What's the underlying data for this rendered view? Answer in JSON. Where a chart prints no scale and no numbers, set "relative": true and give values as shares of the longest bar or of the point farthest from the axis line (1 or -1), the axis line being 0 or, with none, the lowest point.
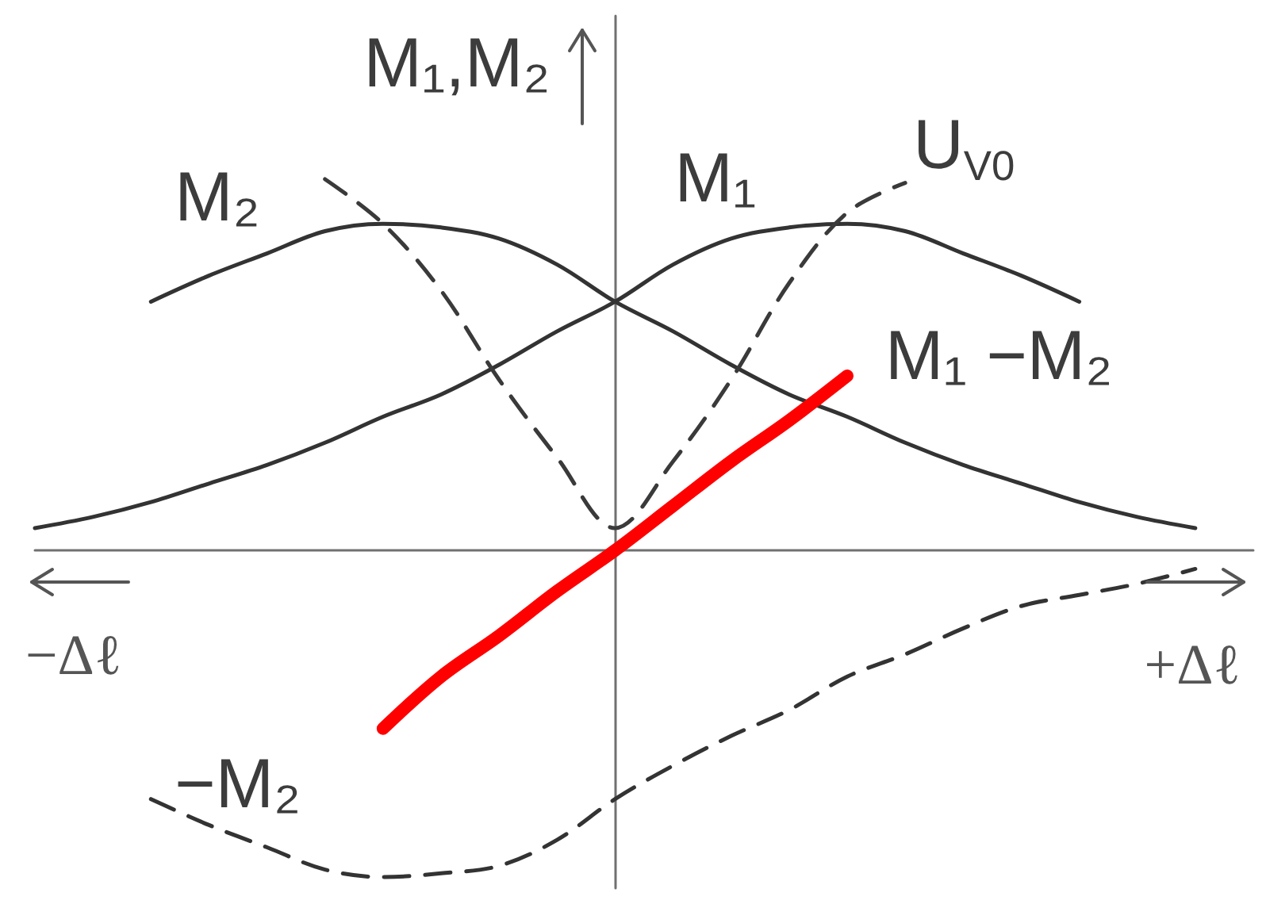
{
  "chart_data": {
    "type": "line",
    "relative": true,
    "categories": [
      null,
      null,
      null,
      null,
      null,
      null,
      null,
      null,
      null,
      null,
      null,
      null,
      null,
      null,
      null,
      null,
      null,
      null,
      null,
      null,
      null,
      null
    ],
    "xlabel": "+Δℓ",
    "ylabel": "M₁,M₂",
    "annotations": [
      "−Δℓ"
    ],
    "grid": false,
    "marker": "none",
    "line_style": "solid",
    "series": [
      {
        "name": "M₁",
        "color": "#333333",
        "values": [
          0.06,
          0.09,
          0.13,
          0.18,
          0.23,
          0.29,
          0.36,
          0.42,
          0.5,
          0.59,
          0.67,
          0.77,
          0.84,
          0.87,
          0.88,
          0.86,
          0.8,
          0.74,
          0.67,
          null,
          null,
          null
        ]
      },
      {
        "name": "M₂",
        "color": "#333333",
        "values": [
          null,
          null,
          0.67,
          0.74,
          0.8,
          0.86,
          0.88,
          0.87,
          0.84,
          0.77,
          0.67,
          0.59,
          0.5,
          0.42,
          0.36,
          0.29,
          0.23,
          0.18,
          0.13,
          0.09,
          0.06,
          null
        ]
      },
      {
        "name": "U$_{V0}$",
        "color": "#3a3a3a",
        "line_style": "dashed",
        "values": [
          null,
          null,
          null,
          null,
          null,
          1.0,
          0.88,
          0.7,
          0.46,
          0.25,
          0.06,
          0.24,
          0.46,
          0.72,
          0.91,
          0.99,
          null,
          null,
          null,
          null,
          null,
          null
        ]
      },
      {
        "name": "−M₂",
        "color": "#333333",
        "line_style": "dashed",
        "values": [
          null,
          null,
          -0.67,
          -0.74,
          -0.8,
          -0.86,
          -0.88,
          -0.87,
          -0.85,
          -0.78,
          -0.67,
          -0.58,
          -0.5,
          -0.43,
          -0.34,
          -0.28,
          -0.21,
          -0.15,
          -0.12,
          -0.09,
          -0.05,
          null
        ]
      },
      {
        "name": "M₁ −M₂",
        "color": "#ff0000",
        "values": [
          null,
          null,
          null,
          null,
          null,
          null,
          -0.48,
          -0.34,
          -0.23,
          -0.11,
          0,
          0.12,
          0.24,
          0.35,
          0.47,
          null,
          null,
          null,
          null,
          null,
          null,
          null
        ]
      }
    ]
  }
}
